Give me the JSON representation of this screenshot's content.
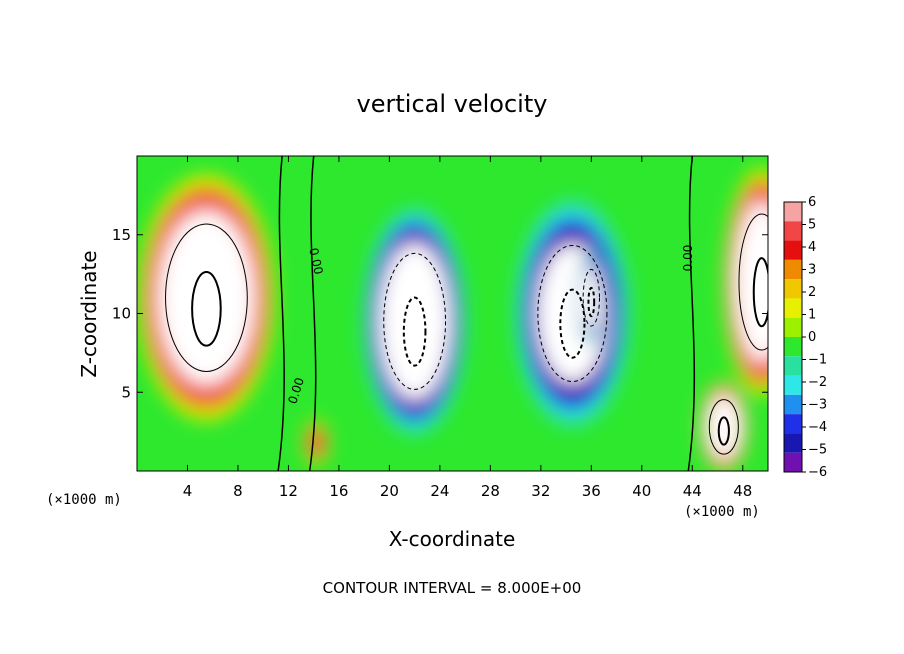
{
  "chart_data": {
    "type": "heatmap",
    "title": "vertical velocity",
    "xlabel": "X-coordinate",
    "ylabel": "Z-coordinate",
    "x_unit": "(×1000 m)",
    "xlim": [
      0,
      50
    ],
    "ylim": [
      0,
      20
    ],
    "x_ticks": [
      4,
      8,
      12,
      16,
      20,
      24,
      28,
      32,
      36,
      40,
      44,
      48
    ],
    "y_ticks": [
      5,
      10,
      15
    ],
    "colorbar": {
      "levels": [
        6,
        5,
        4,
        3,
        2,
        1,
        0,
        -1,
        -2,
        -3,
        -4,
        -5,
        -6
      ],
      "labels": [
        "6",
        "5",
        "4",
        "3",
        "2",
        "1",
        "0",
        "−1",
        "−2",
        "−3",
        "−4",
        "−5",
        "−6"
      ],
      "colors": [
        "#f6a3a3",
        "#f24545",
        "#e60f0f",
        "#f08a00",
        "#f0c800",
        "#e6f000",
        "#9cf000",
        "#2ee82e",
        "#28e0a0",
        "#2ee8e8",
        "#2090f0",
        "#2030e8",
        "#1818b0",
        "#7010b0"
      ]
    },
    "contour_labels": [
      "0.00",
      "0.00",
      "0.00"
    ],
    "footer": "CONTOUR INTERVAL = 8.000E+00",
    "features": [
      {
        "kind": "updraft",
        "cx": 5.5,
        "cz": 11,
        "rx": 4.5,
        "rz": 6.5,
        "peak": 10
      },
      {
        "kind": "updraft",
        "cx": 49.5,
        "cz": 12,
        "rx": 2.5,
        "rz": 6,
        "peak": 10
      },
      {
        "kind": "updraft",
        "cx": 46.5,
        "cz": 2.8,
        "rx": 1.6,
        "rz": 2.4,
        "peak": 10
      },
      {
        "kind": "updraft",
        "cx": 14.2,
        "cz": 1.8,
        "rx": 0.8,
        "rz": 1.2,
        "peak": 4
      },
      {
        "kind": "downdraft",
        "cx": 22,
        "cz": 9.5,
        "rx": 3.4,
        "rz": 6,
        "peak": -10
      },
      {
        "kind": "downdraft",
        "cx": 34.5,
        "cz": 10,
        "rx": 3.8,
        "rz": 6,
        "peak": -8
      },
      {
        "kind": "downdraft",
        "cx": 36,
        "cz": 11,
        "rx": 0.9,
        "rz": 2.5,
        "peak": -10
      }
    ]
  }
}
